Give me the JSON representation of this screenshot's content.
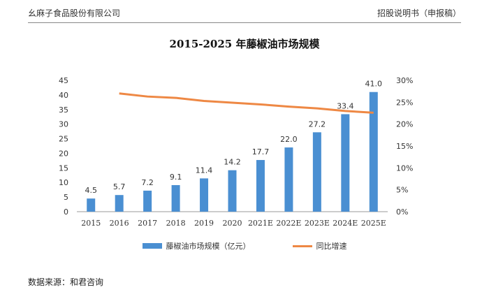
{
  "header": {
    "left": "幺麻子食品股份有限公司",
    "right": "招股说明书（申报稿）"
  },
  "source": "数据来源：和君咨询",
  "colors": {
    "bar": "#4a8fd2",
    "line": "#ee8844"
  },
  "chart_data": {
    "type": "bar",
    "title": "2015-2025 年藤椒油市场规模",
    "categories": [
      "2015",
      "2016",
      "2017",
      "2018",
      "2019",
      "2020",
      "2021E",
      "2022E",
      "2023E",
      "2024E",
      "2025E"
    ],
    "series": [
      {
        "name": "藤椒油市场规模（亿元）",
        "type": "bar",
        "axis": "left",
        "values": [
          4.5,
          5.7,
          7.2,
          9.1,
          11.4,
          14.2,
          17.7,
          22.0,
          27.2,
          33.4,
          41.0
        ],
        "labels": [
          "4.5",
          "5.7",
          "7.2",
          "9.1",
          "11.4",
          "14.2",
          "17.7",
          "22.0",
          "27.2",
          "33.4",
          "41.0"
        ]
      },
      {
        "name": "同比增速",
        "type": "line",
        "axis": "right",
        "values": [
          null,
          27.0,
          26.3,
          26.0,
          25.3,
          24.9,
          24.5,
          24.0,
          23.6,
          23.0,
          22.6
        ]
      }
    ],
    "ylim": [
      0,
      45
    ],
    "y_ticks": [
      "0",
      "5",
      "10",
      "15",
      "20",
      "25",
      "30",
      "35",
      "40",
      "45"
    ],
    "y2lim": [
      0,
      30
    ],
    "y2_ticks": [
      "0%",
      "5%",
      "10%",
      "15%",
      "20%",
      "25%",
      "30%"
    ],
    "grid": false,
    "legend": "bottom"
  }
}
